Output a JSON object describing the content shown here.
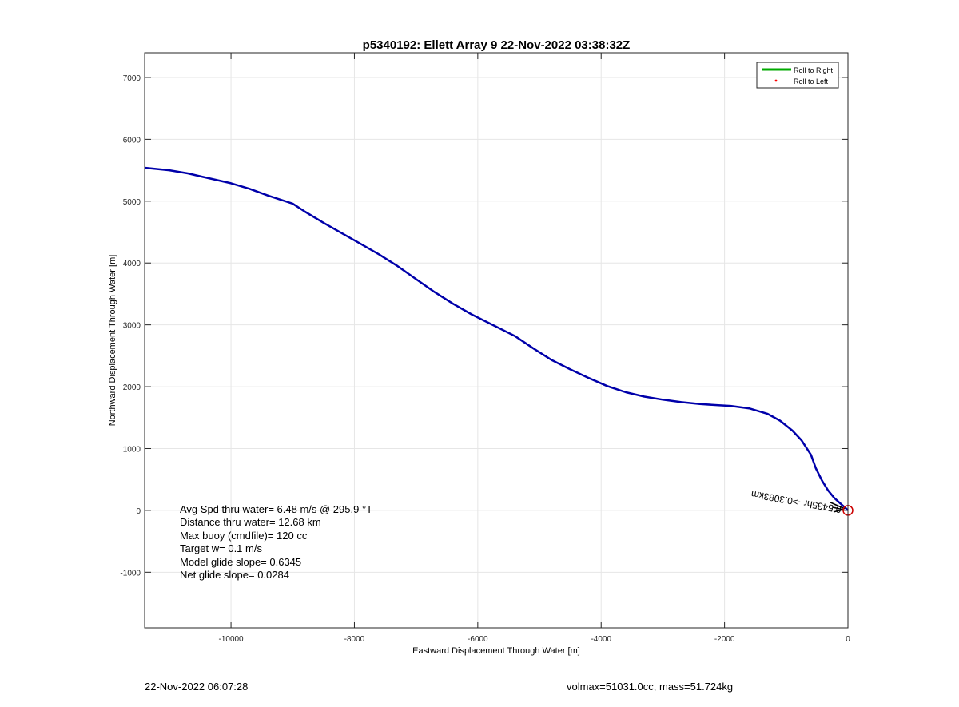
{
  "footer": {
    "timestamp": "22-Nov-2022 06:07:28",
    "mass_info": "volmax=51031.0cc, mass=51.724kg"
  },
  "stats": {
    "avg_speed": "Avg Spd thru water=  6.48 m/s @ 295.9 °T",
    "distance": "Distance thru water= 12.68 km",
    "max_buoy": "Max buoy (cmdfile)= 120 cc",
    "target_w": "Target w= 0.1 m/s",
    "model_glide": "Model glide slope= 0.6345",
    "net_glide": "Net glide slope= 0.0284"
  },
  "chart_data": {
    "type": "line",
    "title": "p5340192: Ellett Array 9 22-Nov-2022 03:38:32Z",
    "xlabel": "Eastward Displacement Through Water [m]",
    "ylabel": "Northward Displacement Through Water [m]",
    "xlim": [
      -11400,
      0
    ],
    "ylim": [
      -1900,
      7400
    ],
    "xticks": [
      -10000,
      -8000,
      -6000,
      -4000,
      -2000,
      0
    ],
    "yticks": [
      -1000,
      0,
      1000,
      2000,
      3000,
      4000,
      5000,
      6000,
      7000
    ],
    "grid": true,
    "legend": {
      "position": "top-right",
      "entries": [
        {
          "label": "Roll to Right",
          "color": "#00aa00",
          "style": "line"
        },
        {
          "label": "Roll to Left",
          "color": "#ff0000",
          "style": "dot"
        }
      ]
    },
    "series": [
      {
        "color": "#0000aa",
        "x": [
          -11400,
          -11000,
          -10700,
          -10400,
          -10000,
          -9700,
          -9400,
          -9000,
          -8800,
          -8500,
          -8200,
          -7900,
          -7600,
          -7300,
          -7000,
          -6700,
          -6400,
          -6100,
          -5800,
          -5400,
          -5100,
          -4800,
          -4500,
          -4200,
          -3900,
          -3600,
          -3300,
          -3000,
          -2700,
          -2400,
          -2100,
          -1900,
          -1600,
          -1300,
          -1100,
          -900,
          -750,
          -600,
          -520,
          -420,
          -320,
          -220,
          -120,
          -40,
          0
        ],
        "y": [
          5540,
          5500,
          5450,
          5380,
          5290,
          5200,
          5090,
          4960,
          4830,
          4650,
          4480,
          4310,
          4140,
          3950,
          3740,
          3530,
          3340,
          3170,
          3020,
          2820,
          2620,
          2430,
          2280,
          2140,
          2010,
          1910,
          1840,
          1790,
          1750,
          1720,
          1700,
          1690,
          1650,
          1560,
          1450,
          1290,
          1130,
          900,
          680,
          480,
          320,
          200,
          110,
          40,
          0
        ]
      }
    ],
    "markers": {
      "end_circle": {
        "x": 0,
        "y": 0,
        "color": "#cc0000"
      }
    },
    "annotations": [
      {
        "text": "0.5435hr ->0.3083km",
        "x": -100,
        "y": 60,
        "rotation_deg": 190
      }
    ]
  }
}
